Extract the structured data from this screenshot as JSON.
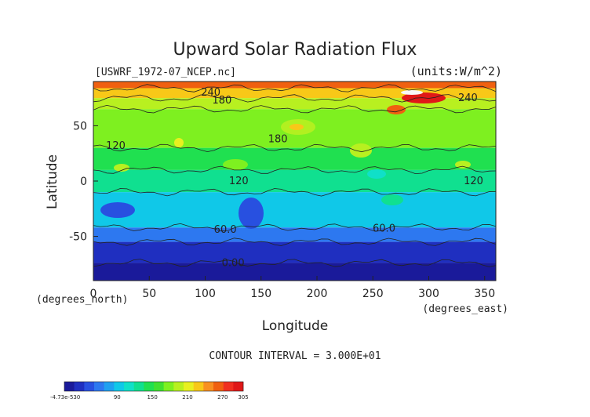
{
  "chart_data": {
    "type": "heatmap",
    "title": "Upward Solar Radiation Flux",
    "source_label": "[USWRF_1972-07_NCEP.nc]",
    "units_label": "(units:W/m^2)",
    "xlabel": "Longitude",
    "ylabel": "Latitude",
    "x_unit_label": "(degrees_east)",
    "y_unit_label": "(degrees_north)",
    "xlim": [
      0,
      360
    ],
    "ylim": [
      -90,
      90
    ],
    "x_ticks": [
      0,
      50,
      100,
      150,
      200,
      250,
      300,
      350
    ],
    "y_ticks": [
      -50,
      0,
      50
    ],
    "contour_interval_label": "CONTOUR INTERVAL = 3.000E+01",
    "contour_labels": [
      {
        "text": "240",
        "lon": 105,
        "lat": 80
      },
      {
        "text": "180",
        "lon": 115,
        "lat": 73
      },
      {
        "text": "240",
        "lon": 335,
        "lat": 75
      },
      {
        "text": "180",
        "lon": 165,
        "lat": 38
      },
      {
        "text": "120",
        "lon": 20,
        "lat": 32
      },
      {
        "text": "120",
        "lon": 130,
        "lat": 0
      },
      {
        "text": "120",
        "lon": 340,
        "lat": 0
      },
      {
        "text": "60.0",
        "lon": 118,
        "lat": -44
      },
      {
        "text": "60.0",
        "lon": 260,
        "lat": -43
      },
      {
        "text": "0.00",
        "lon": 125,
        "lat": -74
      }
    ],
    "latitude_bands": [
      {
        "lat_from": 90,
        "lat_to": 84,
        "value": 255
      },
      {
        "lat_from": 84,
        "lat_to": 75,
        "value": 225
      },
      {
        "lat_from": 75,
        "lat_to": 65,
        "value": 195
      },
      {
        "lat_from": 65,
        "lat_to": 30,
        "value": 170
      },
      {
        "lat_from": 30,
        "lat_to": 10,
        "value": 150
      },
      {
        "lat_from": 10,
        "lat_to": -10,
        "value": 120
      },
      {
        "lat_from": -10,
        "lat_to": -42,
        "value": 90
      },
      {
        "lat_from": -42,
        "lat_to": -55,
        "value": 60
      },
      {
        "lat_from": -55,
        "lat_to": -74,
        "value": 30
      },
      {
        "lat_from": -74,
        "lat_to": -90,
        "value": 0
      }
    ],
    "colorbar": {
      "tick_labels": [
        "-4.73e-530",
        "90",
        "150",
        "210",
        "270",
        "305"
      ],
      "colors": [
        "#1a1a9a",
        "#1f2fc0",
        "#2850e0",
        "#2d78f0",
        "#1fa0f0",
        "#10c8e8",
        "#10e0c8",
        "#10e090",
        "#20e050",
        "#40e030",
        "#7ef020",
        "#b8f020",
        "#e8f020",
        "#f8c818",
        "#f89020",
        "#f06010",
        "#f03020",
        "#e01818"
      ]
    }
  }
}
